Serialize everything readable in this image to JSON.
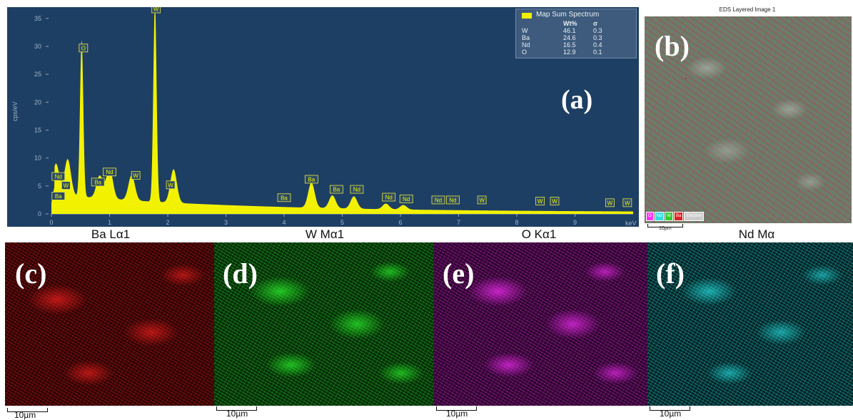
{
  "spectrum": {
    "panel_label": "(a)",
    "y_axis_label": "cps/eV",
    "x_unit": "keV",
    "legend": {
      "title": "Map Sum Spectrum",
      "headers": [
        "",
        "Wt%",
        "σ"
      ],
      "rows": [
        [
          "W",
          "46.1",
          "0.3"
        ],
        [
          "Ba",
          "24.6",
          "0.3"
        ],
        [
          "Nd",
          "16.5",
          "0.4"
        ],
        [
          "O",
          "12.9",
          "0.1"
        ]
      ]
    },
    "colors": {
      "background": "#1e3f64",
      "spectrum": "#f2f200"
    }
  },
  "chart_data": {
    "type": "area",
    "xlabel": "keV",
    "ylabel": "cps/eV",
    "xlim": [
      0,
      10
    ],
    "ylim": [
      0,
      36
    ],
    "x_ticks": [
      "0",
      "1",
      "2",
      "3",
      "4",
      "5",
      "6",
      "7",
      "8",
      "9"
    ],
    "y_ticks": [
      "0",
      "5",
      "10",
      "15",
      "20",
      "25",
      "30",
      "35"
    ],
    "grid": false,
    "legend_position": "top-right",
    "peaks": [
      {
        "x": 0.08,
        "y": 5.5
      },
      {
        "x": 0.28,
        "y": 6.5
      },
      {
        "x": 0.52,
        "y": 28.0
      },
      {
        "x": 0.83,
        "y": 4.0
      },
      {
        "x": 1.0,
        "y": 5.5
      },
      {
        "x": 1.38,
        "y": 4.5
      },
      {
        "x": 1.78,
        "y": 35.5
      },
      {
        "x": 2.1,
        "y": 6.0
      },
      {
        "x": 4.47,
        "y": 4.5
      },
      {
        "x": 4.83,
        "y": 2.3
      },
      {
        "x": 5.2,
        "y": 2.2
      },
      {
        "x": 5.75,
        "y": 1.0
      },
      {
        "x": 6.05,
        "y": 0.8
      }
    ],
    "peak_labels": [
      {
        "label": "Nd",
        "x": 0.12,
        "y": 6.0
      },
      {
        "label": "Ba",
        "x": 0.12,
        "y": 2.5
      },
      {
        "label": "W",
        "x": 0.25,
        "y": 4.4
      },
      {
        "label": "O",
        "x": 0.55,
        "y": 29.0
      },
      {
        "label": "Ba",
        "x": 0.8,
        "y": 5.0
      },
      {
        "label": "Nd",
        "x": 1.0,
        "y": 6.8
      },
      {
        "label": "W",
        "x": 1.45,
        "y": 6.2
      },
      {
        "label": "W",
        "x": 1.8,
        "y": 36.0
      },
      {
        "label": "W",
        "x": 2.05,
        "y": 4.5
      },
      {
        "label": "Ba",
        "x": 4.0,
        "y": 2.2
      },
      {
        "label": "Ba",
        "x": 4.47,
        "y": 5.5
      },
      {
        "label": "Ba",
        "x": 4.9,
        "y": 3.7
      },
      {
        "label": "Nd",
        "x": 5.25,
        "y": 3.7
      },
      {
        "label": "Nd",
        "x": 5.8,
        "y": 2.3
      },
      {
        "label": "Nd",
        "x": 6.1,
        "y": 2.0
      },
      {
        "label": "Nd",
        "x": 6.65,
        "y": 1.8
      },
      {
        "label": "Nd",
        "x": 6.9,
        "y": 1.8
      },
      {
        "label": "W",
        "x": 7.4,
        "y": 1.8
      },
      {
        "label": "W",
        "x": 8.4,
        "y": 1.6
      },
      {
        "label": "W",
        "x": 8.65,
        "y": 1.6
      },
      {
        "label": "W",
        "x": 9.6,
        "y": 1.3
      },
      {
        "label": "W",
        "x": 9.9,
        "y": 1.3
      }
    ]
  },
  "layered": {
    "title": "EDS Layered Image 1",
    "panel_label": "(b)",
    "legend_items": [
      "O",
      "Nd",
      "W",
      "Ba",
      "Electron"
    ],
    "legend_colors": [
      "#ff33ff",
      "#33dddd",
      "#33cc33",
      "#dd2222",
      "#cccccc"
    ],
    "scale": "10µm"
  },
  "maps": [
    {
      "title": "Ba Lα1",
      "panel_label": "(c)",
      "scale": "10µm",
      "color": "#e01818"
    },
    {
      "title": "W Mα1",
      "panel_label": "(d)",
      "scale": "10µm",
      "color": "#22cc22"
    },
    {
      "title": "O Kα1",
      "panel_label": "(e)",
      "scale": "10µm",
      "color": "#dd22dd"
    },
    {
      "title": "Nd Mα",
      "panel_label": "(f)",
      "scale": "10µm",
      "color": "#22d8d8"
    }
  ]
}
